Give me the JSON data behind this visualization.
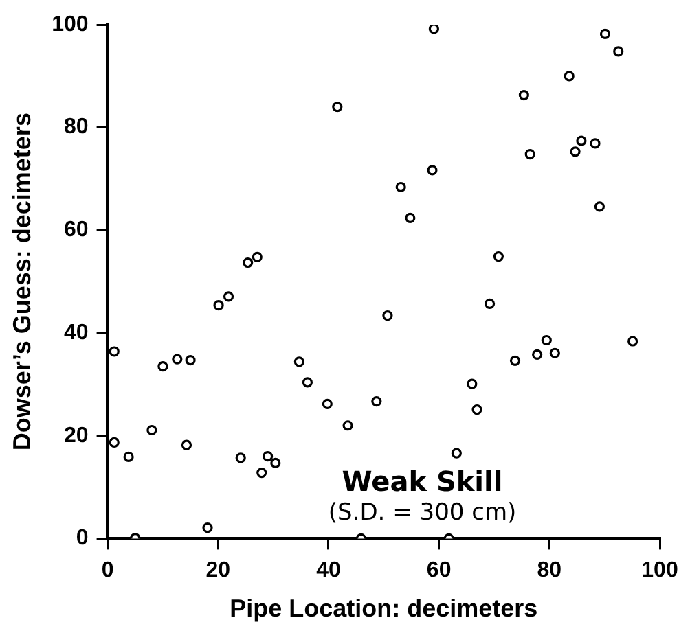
{
  "chart_data": {
    "type": "scatter",
    "xlabel": "Pipe Location: decimeters",
    "ylabel": "Dowser’s Guess: decimeters",
    "annotations": [
      "Weak Skill",
      "(S.D. = 300 cm)"
    ],
    "xlim": [
      0,
      100
    ],
    "xticks": [
      0,
      20,
      40,
      60,
      80,
      100
    ],
    "ylim": [
      0,
      100
    ],
    "yticks": [
      0,
      20,
      40,
      60,
      80,
      100
    ],
    "grid": false,
    "legend": false,
    "marker": "circle",
    "series": [
      {
        "color": "#000000",
        "x": [
          1.2,
          10,
          12.6,
          15,
          20.1,
          21.9,
          25.4,
          27.1,
          34.7,
          36.2,
          39.8,
          43.5,
          48.7,
          1.2,
          3.8,
          8,
          14.3,
          24.1,
          29,
          30.4,
          27.9,
          5,
          18.1,
          45.9,
          61.8,
          41.6,
          59.1,
          90.1,
          92.5,
          83.6,
          75.4,
          85.8,
          84.7,
          88.3,
          76.5,
          58.8,
          53.1,
          54.8,
          89.1,
          70.8,
          69.2,
          50.7,
          79.5,
          77.8,
          81,
          73.8,
          95.1,
          66,
          66.9,
          63.2
        ],
        "values": [
          36.4,
          33.5,
          34.9,
          34.7,
          45.4,
          47.1,
          53.7,
          54.8,
          34.4,
          30.4,
          26.2,
          22,
          26.7,
          18.7,
          15.9,
          21.1,
          18.2,
          15.7,
          16,
          14.7,
          12.8,
          0.1,
          2.1,
          0,
          0,
          84,
          99.2,
          98.2,
          94.8,
          90,
          86.3,
          77.4,
          75.3,
          76.9,
          74.8,
          71.7,
          68.4,
          62.4,
          64.6,
          54.9,
          45.7,
          43.4,
          38.6,
          35.8,
          36.1,
          34.6,
          38.4,
          30.1,
          25.1,
          16.6
        ]
      }
    ]
  }
}
